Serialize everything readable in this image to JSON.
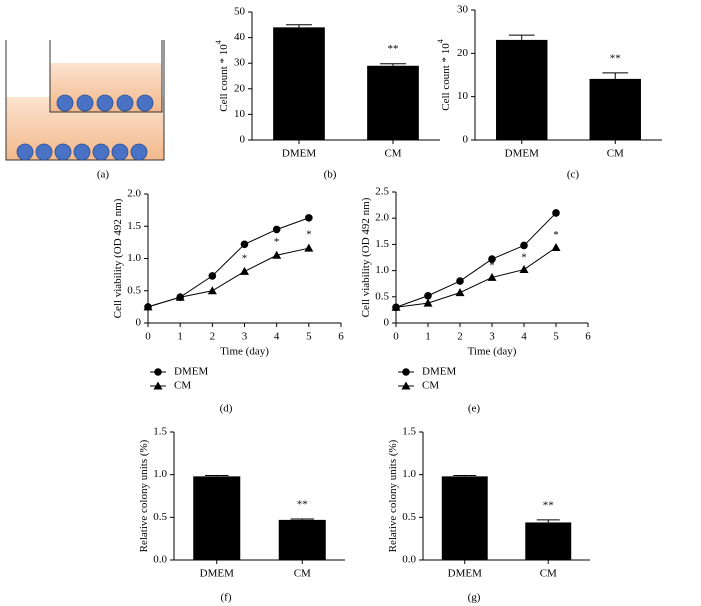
{
  "diagram": {
    "label": "(a)"
  },
  "chart_data": [
    {
      "type": "bar",
      "label": "(b)",
      "y_label": "Cell count * 10",
      "y_label_sup": "4",
      "categories": [
        "DMEM",
        "CM"
      ],
      "values": [
        44,
        29
      ],
      "errors": [
        1,
        0.8
      ],
      "value_annotations": [
        null,
        "**"
      ],
      "color": "#000000",
      "ylim": [
        0,
        50
      ],
      "yticks": [
        0,
        10,
        20,
        30,
        40,
        50
      ]
    },
    {
      "type": "bar",
      "label": "(c)",
      "y_label": "Cell count * 10",
      "y_label_sup": "4",
      "categories": [
        "DMEM",
        "CM"
      ],
      "values": [
        23.1,
        14.1
      ],
      "errors": [
        1.1,
        1.4
      ],
      "value_annotations": [
        null,
        "**"
      ],
      "color": "#000000",
      "ylim": [
        0,
        30
      ],
      "yticks": [
        0,
        10,
        20,
        30
      ]
    },
    {
      "type": "line",
      "label": "(d)",
      "x_label": "Time (day)",
      "y_label": "Cell viability (OD 492 nm)",
      "x": [
        0,
        1,
        2,
        3,
        4,
        5
      ],
      "series": [
        {
          "name": "DMEM",
          "marker": "circle",
          "color": "#000000",
          "values": [
            0.25,
            0.4,
            0.73,
            1.22,
            1.45,
            1.63
          ],
          "errors": [
            0.02,
            0.02,
            0.04,
            0.05,
            0.02,
            0.04
          ]
        },
        {
          "name": "CM",
          "marker": "triangle",
          "color": "#000000",
          "values": [
            0.25,
            0.4,
            0.5,
            0.8,
            1.05,
            1.16
          ],
          "errors": [
            0.02,
            0.02,
            0.04,
            0.04,
            0.04,
            0.05
          ],
          "annotations": [
            null,
            null,
            null,
            "*",
            "*",
            "*"
          ]
        }
      ],
      "xlim": [
        0,
        6
      ],
      "xticks": [
        0,
        1,
        2,
        3,
        4,
        5,
        6
      ],
      "ylim": [
        0,
        2
      ],
      "yticks": [
        0,
        0.5,
        {
          "value": 1,
          "label": "1.0"
        },
        1.5,
        {
          "value": 2,
          "label": "2.0"
        }
      ]
    },
    {
      "type": "line",
      "label": "(e)",
      "x_label": "Time (day)",
      "y_label": "Cell viability (OD 492 nm)",
      "x": [
        0,
        1,
        2,
        3,
        4,
        5
      ],
      "series": [
        {
          "name": "DMEM",
          "marker": "circle",
          "color": "#000000",
          "values": [
            0.3,
            0.52,
            0.8,
            1.22,
            1.48,
            2.1
          ],
          "errors": [
            0.02,
            0.02,
            0.06,
            0.04,
            0.05,
            0.07
          ]
        },
        {
          "name": "CM",
          "marker": "triangle",
          "color": "#000000",
          "values": [
            0.3,
            0.38,
            0.58,
            0.87,
            1.02,
            1.44
          ],
          "errors": [
            0.02,
            0.02,
            0.02,
            0.03,
            0.03,
            0.04
          ],
          "annotations": [
            null,
            null,
            null,
            "*",
            "*",
            "*"
          ]
        }
      ],
      "xlim": [
        0,
        6
      ],
      "xticks": [
        0,
        1,
        2,
        3,
        4,
        5,
        6
      ],
      "ylim": [
        0,
        2.5
      ],
      "yticks": [
        0,
        0.5,
        {
          "value": 1,
          "label": "1.0"
        },
        1.5,
        {
          "value": 2,
          "label": "2.0"
        },
        2.5
      ]
    },
    {
      "type": "bar",
      "label": "(f)",
      "y_label": "Relative colony units (%)",
      "categories": [
        "DMEM",
        "CM"
      ],
      "values": [
        0.98,
        0.47
      ],
      "errors": [
        0.01,
        0.01
      ],
      "value_annotations": [
        null,
        "**"
      ],
      "color": "#000000",
      "ylim": [
        0,
        1.5
      ],
      "yticks": [
        {
          "value": 0,
          "label": "0.0"
        },
        0.5,
        {
          "value": 1,
          "label": "1.0"
        },
        1.5
      ]
    },
    {
      "type": "bar",
      "label": "(g)",
      "y_label": "Relative colony units (%)",
      "categories": [
        "DMEM",
        "CM"
      ],
      "values": [
        0.98,
        0.44
      ],
      "errors": [
        0.01,
        0.03
      ],
      "value_annotations": [
        null,
        "**"
      ],
      "color": "#000000",
      "ylim": [
        0,
        1.5
      ],
      "yticks": [
        {
          "value": 0,
          "label": "0.0"
        },
        0.5,
        {
          "value": 1,
          "label": "1.0"
        },
        1.5
      ]
    }
  ]
}
